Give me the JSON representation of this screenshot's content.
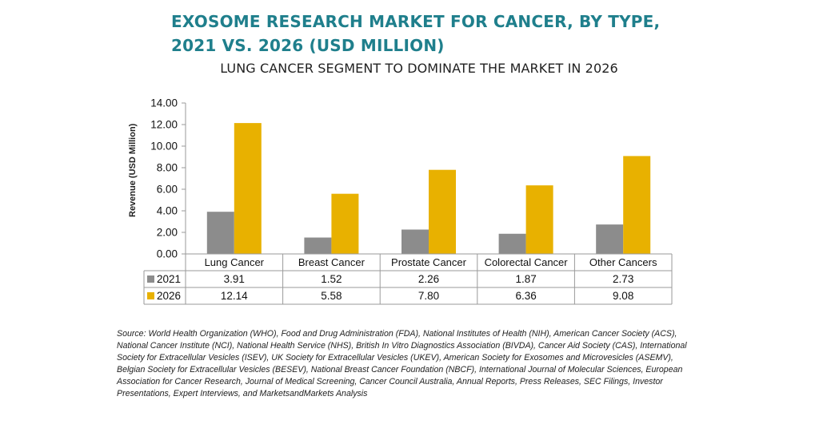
{
  "title": "EXOSOME RESEARCH MARKET FOR CANCER, BY TYPE, 2021 VS. 2026 (USD MILLION)",
  "subtitle": "LUNG CANCER SEGMENT TO DOMINATE THE MARKET IN 2026",
  "source": "Source: World Health Organization (WHO), Food and Drug Administration (FDA), National Institutes of Health (NIH), American Cancer Society (ACS), National Cancer Institute (NCI), National Health Service (NHS), British In Vitro Diagnostics Association (BIVDA), Cancer Aid Society (CAS), International Society for Extracellular Vesicles (ISEV), UK Society for Extracellular Vesicles (UKEV), American Society for Exosomes and Microvesicles (ASEMV), Belgian Society for Extracellular Vesicles (BESEV), National Breast Cancer Foundation (NBCF), International Journal of Molecular Sciences, European Association for Cancer Research, Journal of Medical Screening, Cancer Council Australia, Annual Reports, Press Releases, SEC Filings, Investor Presentations, Expert Interviews, and MarketsandMarkets Analysis",
  "chart_data": {
    "type": "bar",
    "title": "EXOSOME RESEARCH MARKET FOR CANCER, BY TYPE, 2021 VS. 2026 (USD MILLION)",
    "subtitle": "LUNG CANCER SEGMENT TO DOMINATE THE MARKET IN 2026",
    "xlabel": "",
    "ylabel": "Revenue (USD Million)",
    "ylim": [
      0,
      14
    ],
    "yticks": [
      "0.00",
      "2.00",
      "4.00",
      "6.00",
      "8.00",
      "10.00",
      "12.00",
      "14.00"
    ],
    "categories": [
      "Lung Cancer",
      "Breast Cancer",
      "Prostate Cancer",
      "Colorectal Cancer",
      "Other Cancers"
    ],
    "series": [
      {
        "name": "2021",
        "values": [
          3.91,
          1.52,
          2.26,
          1.87,
          2.73
        ],
        "labels": [
          "3.91",
          "1.52",
          "2.26",
          "1.87",
          "2.73"
        ],
        "color": "#8c8c8c"
      },
      {
        "name": "2026",
        "values": [
          12.14,
          5.58,
          7.8,
          6.36,
          9.08
        ],
        "labels": [
          "12.14",
          "5.58",
          "7.80",
          "6.36",
          "9.08"
        ],
        "color": "#e8b100"
      }
    ],
    "grid": false,
    "legend": "data-table"
  }
}
